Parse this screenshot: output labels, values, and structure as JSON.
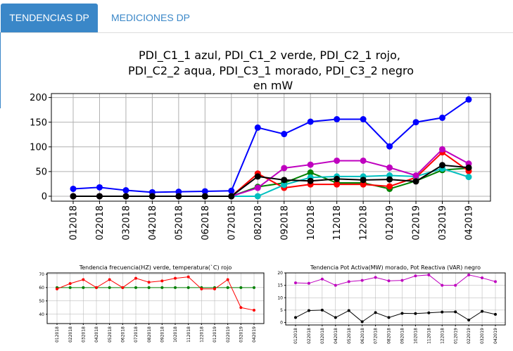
{
  "tabs": [
    {
      "label": "TENDENCIAS DP",
      "active": true
    },
    {
      "label": "MEDICIONES DP",
      "active": false
    }
  ],
  "colors": {
    "accent": "#3a87c8",
    "tab_text": "#ffffff"
  },
  "chart_data": [
    {
      "type": "line",
      "title_lines": [
        "PDI_C1_1 azul, PDI_C1_2 verde,  PDI_C2_1 rojo,",
        "PDI_C2_2 aqua, PDI_C3_1 morado, PDI_C3_2 negro",
        "en mW"
      ],
      "x": [
        "012018",
        "022018",
        "032018",
        "042018",
        "052018",
        "062018",
        "072018",
        "082018",
        "092018",
        "102018",
        "112018",
        "122018",
        "012019",
        "022019",
        "032019",
        "042019"
      ],
      "y_ticks": [
        0,
        50,
        100,
        150,
        200
      ],
      "ylim": [
        -10,
        208
      ],
      "grid": true,
      "series": [
        {
          "color": "#0000ff",
          "values": [
            15,
            18,
            12,
            8,
            9,
            10,
            11,
            139,
            126,
            151,
            156,
            156,
            101,
            150,
            159,
            196
          ]
        },
        {
          "color": "#008000",
          "values": [
            0,
            0,
            0,
            0,
            0,
            0,
            0,
            19,
            27,
            48,
            27,
            27,
            15,
            31,
            53,
            57
          ]
        },
        {
          "color": "#ff0000",
          "values": [
            0,
            0,
            0,
            0,
            0,
            0,
            0,
            46,
            17,
            24,
            24,
            24,
            20,
            38,
            89,
            51
          ]
        },
        {
          "color": "#00bfbf",
          "values": [
            0,
            0,
            0,
            0,
            0,
            0,
            0,
            0,
            23,
            38,
            40,
            40,
            42,
            40,
            56,
            39
          ]
        },
        {
          "color": "#bf00bf",
          "values": [
            0,
            0,
            0,
            0,
            0,
            0,
            0,
            17,
            57,
            64,
            72,
            72,
            58,
            42,
            95,
            66
          ]
        },
        {
          "color": "#000000",
          "values": [
            0,
            0,
            0,
            0,
            0,
            0,
            0,
            40,
            33,
            31,
            35,
            33,
            34,
            30,
            63,
            58
          ]
        }
      ]
    },
    {
      "type": "line",
      "title": "Tendencia frecuencia(HZ) verde, temperatura(`C) rojo",
      "x": [
        "012018",
        "022018",
        "032018",
        "042018",
        "052018",
        "062018",
        "072018",
        "082018",
        "092018",
        "102018",
        "112018",
        "122018",
        "012019",
        "022019",
        "032019",
        "042019"
      ],
      "y_ticks": [
        40,
        50,
        60,
        70
      ],
      "ylim": [
        33,
        71
      ],
      "grid": true,
      "series": [
        {
          "color": "#008000",
          "values": [
            60,
            60,
            60,
            60,
            60,
            60,
            60,
            60,
            60,
            60,
            60,
            60,
            60,
            60,
            60,
            60
          ]
        },
        {
          "color": "#ff0000",
          "values": [
            59,
            63,
            66,
            60,
            66,
            60,
            67,
            64,
            65,
            67,
            68,
            59,
            59,
            66,
            45,
            43
          ]
        }
      ]
    },
    {
      "type": "line",
      "title": "Tendencia Pot Activa(MW) morado, Pot Reactiva (VAR) negro",
      "x": [
        "012018",
        "022018",
        "032018",
        "042018",
        "052018",
        "062018",
        "072018",
        "082018",
        "092018",
        "102018",
        "112018",
        "122018",
        "012019",
        "022019",
        "032019",
        "042019"
      ],
      "y_ticks": [
        0,
        5,
        10,
        15,
        20
      ],
      "ylim": [
        -1,
        20
      ],
      "grid": true,
      "series": [
        {
          "color": "#bf00bf",
          "values": [
            16,
            15.8,
            17.5,
            15,
            16.5,
            17,
            18.2,
            16.8,
            17,
            18.8,
            19.2,
            15,
            15,
            19.2,
            18,
            16.5
          ]
        },
        {
          "color": "#000000",
          "values": [
            2,
            4.8,
            5,
            2,
            4.8,
            0.3,
            4,
            2,
            3.7,
            3.6,
            3.9,
            4.2,
            4.3,
            1,
            4.5,
            3.3
          ]
        }
      ]
    }
  ]
}
